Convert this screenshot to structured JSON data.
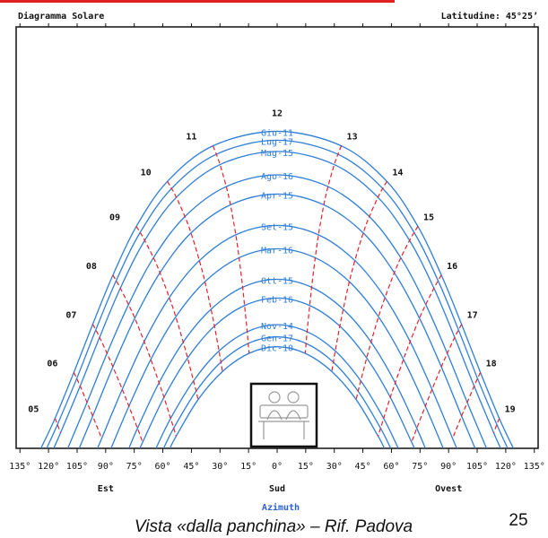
{
  "chart_data": {
    "type": "sunpath",
    "title": "Diagramma Solare",
    "subtitle": "Latitudine: 45°25’",
    "x_label": "Azimuth",
    "xlim": [
      -137,
      137
    ],
    "ylim": [
      0,
      90
    ],
    "xticks": [
      {
        "value": -135,
        "label": "135°"
      },
      {
        "value": -120,
        "label": "120°"
      },
      {
        "value": -105,
        "label": "105°"
      },
      {
        "value": -90,
        "label": "90°"
      },
      {
        "value": -75,
        "label": "75°"
      },
      {
        "value": -60,
        "label": "60°"
      },
      {
        "value": -45,
        "label": "45°"
      },
      {
        "value": -30,
        "label": "30°"
      },
      {
        "value": -15,
        "label": "15°"
      },
      {
        "value": 0,
        "label": "0°"
      },
      {
        "value": 15,
        "label": "15°"
      },
      {
        "value": 30,
        "label": "30°"
      },
      {
        "value": 45,
        "label": "45°"
      },
      {
        "value": 60,
        "label": "60°"
      },
      {
        "value": 75,
        "label": "75°"
      },
      {
        "value": 90,
        "label": "90°"
      },
      {
        "value": 105,
        "label": "105°"
      },
      {
        "value": 120,
        "label": "120°"
      },
      {
        "value": 135,
        "label": "135°"
      }
    ],
    "direction_labels": [
      {
        "value": -90,
        "label": "Est"
      },
      {
        "value": 0,
        "label": "Sud"
      },
      {
        "value": 90,
        "label": "Ovest"
      }
    ],
    "hour_labels": [
      "05",
      "06",
      "07",
      "08",
      "09",
      "10",
      "11",
      "12",
      "13",
      "14",
      "15",
      "16",
      "17",
      "18",
      "19"
    ],
    "hour_color": "#e8202a",
    "series": [
      {
        "name": "Giu-11",
        "color": "#2f7ed8",
        "x": [
          -124.0,
          -116.6,
          -106.7,
          -96.8,
          -86.2,
          -73.9,
          -57.6,
          -33.7,
          0,
          33.7,
          57.6,
          73.9,
          86.2,
          96.8,
          106.7,
          116.6,
          124.0
        ],
        "values": [
          0,
          6.4,
          16.2,
          26.5,
          37.0,
          47.4,
          57.0,
          64.6,
          67.7,
          64.6,
          57.0,
          47.4,
          37.0,
          26.5,
          16.2,
          6.4,
          0
        ]
      },
      {
        "name": "Lug-17",
        "color": "#2f7ed8",
        "x": [
          -121.0,
          -115.3,
          -105.2,
          -95.2,
          -84.5,
          -71.9,
          -55.4,
          -31.9,
          0,
          31.9,
          55.4,
          71.9,
          84.5,
          95.2,
          105.2,
          115.3,
          121.0
        ],
        "values": [
          0,
          5.1,
          14.9,
          25.3,
          35.8,
          46.1,
          55.5,
          62.8,
          65.8,
          62.8,
          55.5,
          46.1,
          35.8,
          25.3,
          14.9,
          5.1,
          0
        ]
      },
      {
        "name": "Mag-15",
        "color": "#2f7ed8",
        "x": [
          -117.3,
          -113.7,
          -103.4,
          -93.2,
          -82.3,
          -69.5,
          -52.9,
          -30.0,
          0,
          30.0,
          52.9,
          69.5,
          82.3,
          93.2,
          103.4,
          113.7,
          117.3
        ],
        "values": [
          0,
          3.3,
          13.3,
          23.7,
          34.2,
          44.4,
          53.6,
          60.6,
          63.4,
          60.6,
          53.6,
          44.4,
          34.2,
          23.7,
          13.3,
          3.3,
          0
        ]
      },
      {
        "name": "Ago-16",
        "color": "#2f7ed8",
        "x": [
          -109.9,
          -99.8,
          -89.3,
          -78.0,
          -64.9,
          -48.4,
          -26.7,
          0,
          26.7,
          48.4,
          64.9,
          78.0,
          89.3,
          99.8,
          109.9
        ],
        "values": [
          0,
          9.8,
          20.3,
          30.7,
          40.7,
          49.5,
          55.9,
          58.4,
          55.9,
          49.5,
          40.7,
          30.7,
          20.3,
          9.8,
          0
        ]
      },
      {
        "name": "Apr-15",
        "color": "#2f7ed8",
        "x": [
          -103.9,
          -96.8,
          -86.2,
          -74.7,
          -61.5,
          -45.2,
          -24.5,
          0,
          24.5,
          45.2,
          61.5,
          74.7,
          86.2,
          96.8,
          103.9
        ],
        "values": [
          0,
          6.9,
          17.4,
          27.8,
          37.5,
          46.0,
          52.0,
          54.3,
          52.0,
          46.0,
          37.5,
          27.8,
          17.4,
          6.9,
          0
        ]
      },
      {
        "name": "Set-15",
        "color": "#2f7ed8",
        "x": [
          -94.3,
          -92.1,
          -81.3,
          -69.8,
          -56.6,
          -40.8,
          -21.7,
          0,
          21.7,
          40.8,
          56.6,
          69.8,
          81.3,
          92.1,
          94.3
        ],
        "values": [
          0,
          2.1,
          12.6,
          22.8,
          32.2,
          40.1,
          45.6,
          47.6,
          45.6,
          40.1,
          32.2,
          22.8,
          12.6,
          2.1,
          0
        ]
      },
      {
        "name": "Mar-16",
        "color": "#2f7ed8",
        "x": [
          -87.2,
          -77.8,
          -66.3,
          -53.2,
          -37.9,
          -20.0,
          0,
          20.0,
          37.9,
          53.2,
          66.3,
          77.8,
          87.2
        ],
        "values": [
          0,
          9.0,
          19.0,
          28.1,
          35.6,
          40.7,
          42.6,
          40.7,
          35.6,
          28.1,
          19.0,
          9.0,
          0
        ]
      },
      {
        "name": "Ott-15",
        "color": "#2f7ed8",
        "x": [
          -77.8,
          -73.3,
          -62.0,
          -49.3,
          -34.7,
          -18.1,
          0,
          18.1,
          34.7,
          49.3,
          62.0,
          73.3,
          77.8
        ],
        "values": [
          0,
          4.3,
          14.0,
          22.7,
          29.7,
          34.4,
          36.1,
          34.4,
          29.7,
          22.7,
          14.0,
          4.3,
          0
        ]
      },
      {
        "name": "Feb-16",
        "color": "#2f7ed8",
        "x": [
          -72.0,
          -70.6,
          -59.4,
          -47.0,
          -32.9,
          -17.1,
          0,
          17.1,
          32.9,
          47.0,
          59.4,
          70.6,
          72.0
        ],
        "values": [
          0,
          1.3,
          10.9,
          19.3,
          26.1,
          30.5,
          32.1,
          30.5,
          26.1,
          19.3,
          10.9,
          1.3,
          0
        ]
      },
      {
        "name": "Nov-14",
        "color": "#2f7ed8",
        "x": [
          -63.6,
          -55.9,
          -43.9,
          -30.5,
          -15.7,
          0,
          15.7,
          30.5,
          43.9,
          55.9,
          63.6
        ],
        "values": [
          0,
          6.4,
          14.4,
          20.8,
          24.9,
          26.4,
          24.9,
          20.8,
          14.4,
          6.4,
          0
        ]
      },
      {
        "name": "Gen-17",
        "color": "#2f7ed8",
        "x": [
          -59.6,
          -54.3,
          -42.5,
          -29.5,
          -15.2,
          0,
          15.2,
          29.5,
          42.5,
          54.3,
          59.6
        ],
        "values": [
          0,
          4.3,
          12.2,
          18.4,
          22.4,
          23.8,
          22.4,
          18.4,
          12.2,
          4.3,
          0
        ]
      },
      {
        "name": "Dic-10",
        "color": "#2f7ed8",
        "x": [
          -56.3,
          -53.0,
          -41.5,
          -28.7,
          -14.7,
          0,
          14.7,
          28.7,
          41.5,
          53.0,
          56.3
        ],
        "values": [
          0,
          2.6,
          10.4,
          16.4,
          20.3,
          21.7,
          20.3,
          16.4,
          10.4,
          2.6,
          0
        ]
      }
    ]
  },
  "caption": "Vista «dalla panchina» – Rif. Padova",
  "page_number": "25"
}
